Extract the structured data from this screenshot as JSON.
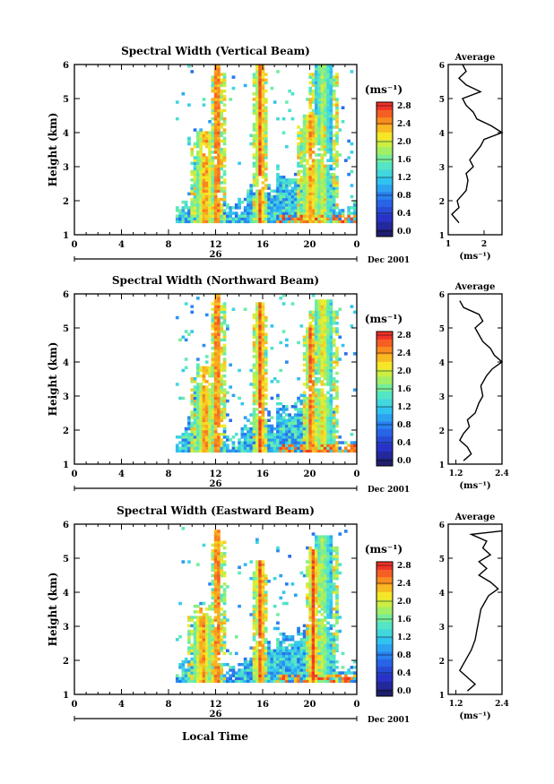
{
  "figure": {
    "x_label": "Local Time"
  },
  "chart_data": [
    {
      "type": "heatmap",
      "title": "Spectral Width (Vertical Beam)",
      "ylabel": "Height (km)",
      "x_ticks": [
        "0",
        "4",
        "8",
        "12",
        "16",
        "20",
        "0"
      ],
      "y_ticks": [
        "1",
        "2",
        "3",
        "4",
        "5",
        "6"
      ],
      "xlim": [
        0,
        24
      ],
      "ylim": [
        1,
        6
      ],
      "date_label": "26",
      "month_label": "Dec 2001",
      "colorbar": {
        "unit": "(ms⁻¹)",
        "range": [
          0,
          2.8
        ],
        "tick_labels": [
          "0.0",
          "0.4",
          "0.8",
          "1.2",
          "1.6",
          "2.0",
          "2.4",
          "2.8"
        ]
      },
      "plumes": [
        {
          "hour": 11.0,
          "top": 4.0,
          "intensity": 0.9
        },
        {
          "hour": 12.0,
          "top": 6.0,
          "intensity": 1.0
        },
        {
          "hour": 15.7,
          "top": 6.0,
          "intensity": 1.0
        },
        {
          "hour": 20.0,
          "top": 4.5,
          "intensity": 0.9
        },
        {
          "hour": 21.0,
          "top": 6.0,
          "intensity": 0.7
        }
      ],
      "average": {
        "title": "Average",
        "unit": "(ms⁻¹)",
        "xlim": [
          1.0,
          2.5
        ],
        "x_ticks": [
          "1",
          "2"
        ],
        "profile": [
          [
            1.35,
            1.3
          ],
          [
            1.6,
            1.1
          ],
          [
            1.8,
            1.3
          ],
          [
            2.0,
            1.25
          ],
          [
            2.3,
            1.5
          ],
          [
            2.6,
            1.55
          ],
          [
            2.8,
            1.5
          ],
          [
            3.0,
            1.7
          ],
          [
            3.2,
            1.6
          ],
          [
            3.4,
            1.75
          ],
          [
            3.6,
            1.9
          ],
          [
            3.8,
            2.0
          ],
          [
            4.0,
            2.5
          ],
          [
            4.2,
            2.2
          ],
          [
            4.4,
            1.8
          ],
          [
            4.6,
            1.7
          ],
          [
            4.8,
            1.5
          ],
          [
            5.0,
            1.4
          ],
          [
            5.2,
            1.9
          ],
          [
            5.4,
            1.5
          ],
          [
            5.6,
            1.3
          ],
          [
            5.8,
            1.5
          ],
          [
            6.0,
            1.4
          ]
        ]
      }
    },
    {
      "type": "heatmap",
      "title": "Spectral Width (Northward Beam)",
      "ylabel": "Height (km)",
      "x_ticks": [
        "0",
        "4",
        "8",
        "12",
        "16",
        "20",
        "0"
      ],
      "y_ticks": [
        "1",
        "2",
        "3",
        "4",
        "5",
        "6"
      ],
      "xlim": [
        0,
        24
      ],
      "ylim": [
        1,
        6
      ],
      "date_label": "26",
      "month_label": "Dec 2001",
      "colorbar": {
        "unit": "(ms⁻¹)",
        "range": [
          0,
          2.8
        ],
        "tick_labels": [
          "0.0",
          "0.4",
          "0.8",
          "1.2",
          "1.6",
          "2.0",
          "2.4",
          "2.8"
        ]
      },
      "plumes": [
        {
          "hour": 11.0,
          "top": 3.8,
          "intensity": 0.9
        },
        {
          "hour": 12.0,
          "top": 6.0,
          "intensity": 1.0
        },
        {
          "hour": 15.7,
          "top": 5.7,
          "intensity": 1.0
        },
        {
          "hour": 20.0,
          "top": 5.0,
          "intensity": 1.0
        },
        {
          "hour": 21.0,
          "top": 5.8,
          "intensity": 0.8
        }
      ],
      "average": {
        "title": "Average",
        "unit": "(ms⁻¹)",
        "xlim": [
          1.0,
          2.4
        ],
        "x_ticks": [
          "1.2",
          "2.4"
        ],
        "profile": [
          [
            1.1,
            1.4
          ],
          [
            1.3,
            1.6
          ],
          [
            1.5,
            1.5
          ],
          [
            1.7,
            1.3
          ],
          [
            1.9,
            1.4
          ],
          [
            2.1,
            1.55
          ],
          [
            2.3,
            1.5
          ],
          [
            2.5,
            1.7
          ],
          [
            2.8,
            1.8
          ],
          [
            3.0,
            1.9
          ],
          [
            3.3,
            1.85
          ],
          [
            3.6,
            2.0
          ],
          [
            3.8,
            2.15
          ],
          [
            4.0,
            2.4
          ],
          [
            4.2,
            2.2
          ],
          [
            4.4,
            2.1
          ],
          [
            4.6,
            1.9
          ],
          [
            4.8,
            1.8
          ],
          [
            5.0,
            1.7
          ],
          [
            5.2,
            1.9
          ],
          [
            5.4,
            1.8
          ],
          [
            5.6,
            1.4
          ],
          [
            5.8,
            1.3
          ]
        ]
      }
    },
    {
      "type": "heatmap",
      "title": "Spectral Width (Eastward Beam)",
      "ylabel": "Height (km)",
      "x_ticks": [
        "0",
        "4",
        "8",
        "12",
        "16",
        "20",
        "0"
      ],
      "y_ticks": [
        "1",
        "2",
        "3",
        "4",
        "5",
        "6"
      ],
      "xlim": [
        0,
        24
      ],
      "ylim": [
        1,
        6
      ],
      "date_label": "26",
      "month_label": "Dec 2001",
      "colorbar": {
        "unit": "(ms⁻¹)",
        "range": [
          0,
          2.8
        ],
        "tick_labels": [
          "0.0",
          "0.4",
          "0.8",
          "1.2",
          "1.6",
          "2.0",
          "2.4",
          "2.8"
        ]
      },
      "plumes": [
        {
          "hour": 10.8,
          "top": 3.6,
          "intensity": 0.9
        },
        {
          "hour": 12.0,
          "top": 5.8,
          "intensity": 1.0
        },
        {
          "hour": 15.7,
          "top": 4.9,
          "intensity": 1.0
        },
        {
          "hour": 20.2,
          "top": 5.2,
          "intensity": 1.0
        },
        {
          "hour": 21.0,
          "top": 5.6,
          "intensity": 0.7
        }
      ],
      "average": {
        "title": "Average",
        "unit": "(ms⁻¹)",
        "xlim": [
          1.0,
          2.4
        ],
        "x_ticks": [
          "1.2",
          "2.4"
        ],
        "profile": [
          [
            1.1,
            1.5
          ],
          [
            1.3,
            1.7
          ],
          [
            1.5,
            1.5
          ],
          [
            1.7,
            1.3
          ],
          [
            1.9,
            1.4
          ],
          [
            2.1,
            1.5
          ],
          [
            2.3,
            1.6
          ],
          [
            2.6,
            1.7
          ],
          [
            2.9,
            1.75
          ],
          [
            3.2,
            1.8
          ],
          [
            3.5,
            1.85
          ],
          [
            3.7,
            1.95
          ],
          [
            3.9,
            2.05
          ],
          [
            4.1,
            2.3
          ],
          [
            4.3,
            2.1
          ],
          [
            4.5,
            1.8
          ],
          [
            4.7,
            2.0
          ],
          [
            4.9,
            1.8
          ],
          [
            5.1,
            2.1
          ],
          [
            5.3,
            1.9
          ],
          [
            5.5,
            2.0
          ],
          [
            5.7,
            1.6
          ],
          [
            5.8,
            2.4
          ]
        ]
      }
    }
  ]
}
